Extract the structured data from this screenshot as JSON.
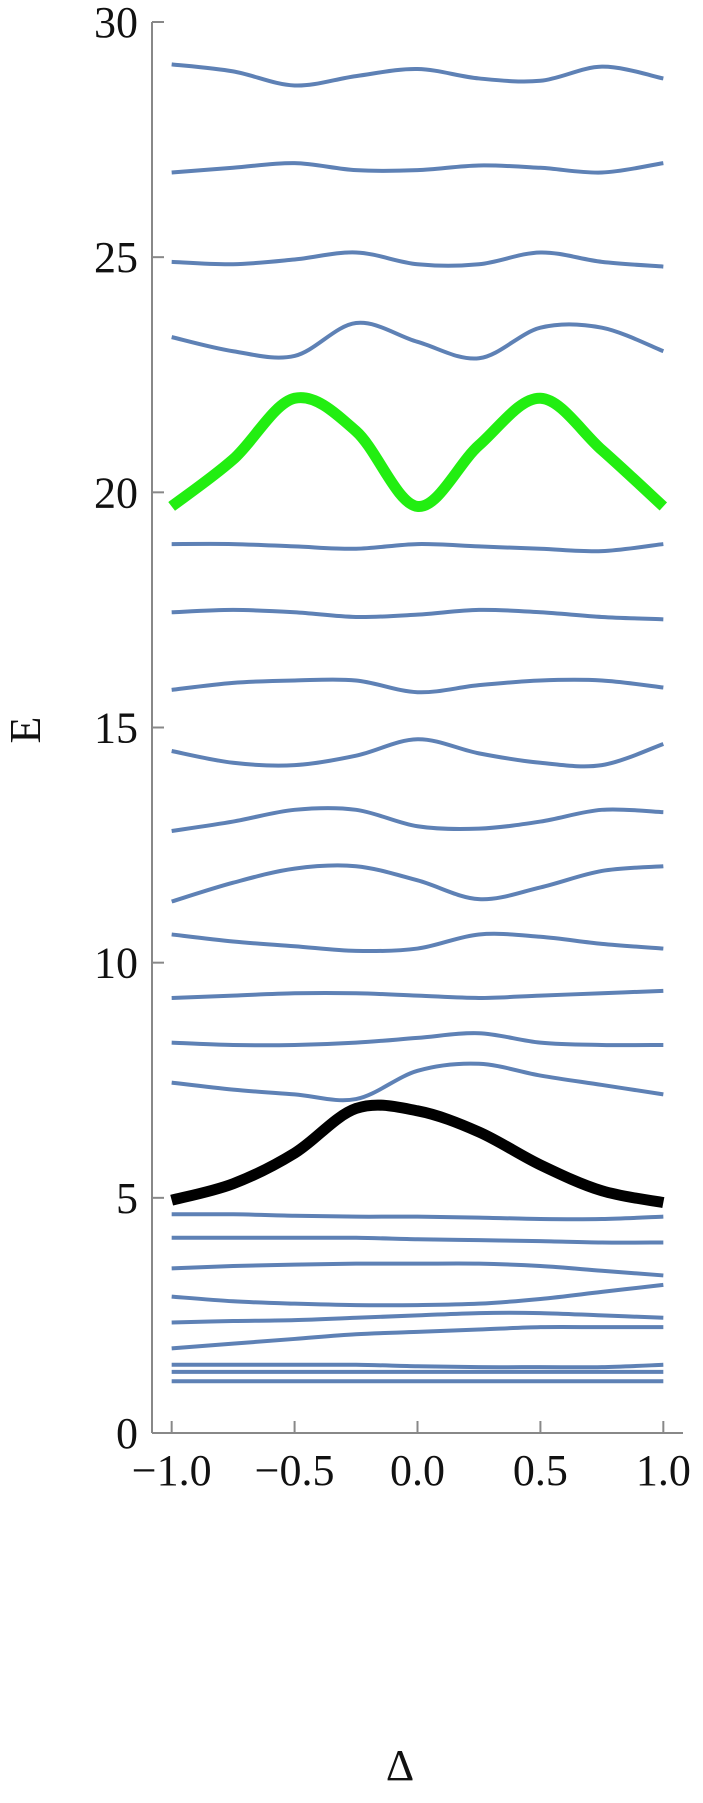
{
  "chart_data": {
    "type": "line",
    "x_label": "Δ",
    "y_label": "E",
    "x": [
      -1,
      -0.75,
      -0.5,
      -0.25,
      0,
      0.25,
      0.5,
      0.75,
      1
    ],
    "xlim": [
      -1.08,
      1.08
    ],
    "ylim": [
      0,
      30
    ],
    "xticks": [
      {
        "value": -1,
        "label": "−1.0"
      },
      {
        "value": -0.5,
        "label": "−0.5"
      },
      {
        "value": 0,
        "label": "0.0"
      },
      0.5,
      {
        "value": 1,
        "label": "1.0"
      }
    ],
    "yticks": [
      0,
      5,
      10,
      15,
      20,
      25,
      30
    ],
    "series": [
      {
        "color": "#5e81b5",
        "values": [
          29.1,
          28.95,
          28.65,
          28.85,
          29.0,
          28.8,
          28.75,
          29.05,
          28.8
        ]
      },
      {
        "color": "#5e81b5",
        "values": [
          26.8,
          26.9,
          27.0,
          26.85,
          26.85,
          26.95,
          26.9,
          26.8,
          27.0
        ]
      },
      {
        "color": "#5e81b5",
        "values": [
          24.9,
          24.85,
          24.95,
          25.1,
          24.85,
          24.85,
          25.1,
          24.9,
          24.8
        ]
      },
      {
        "color": "#5e81b5",
        "values": [
          23.3,
          23.0,
          22.9,
          23.6,
          23.2,
          22.85,
          23.5,
          23.5,
          23.0
        ]
      },
      {
        "color": "#22ee11",
        "values": [
          19.7,
          20.7,
          22.0,
          21.3,
          19.7,
          21.0,
          22.0,
          20.9,
          19.7
        ]
      },
      {
        "color": "#5e81b5",
        "values": [
          18.9,
          18.9,
          18.85,
          18.8,
          18.9,
          18.85,
          18.8,
          18.75,
          18.9
        ]
      },
      {
        "color": "#5e81b5",
        "values": [
          17.45,
          17.5,
          17.45,
          17.35,
          17.4,
          17.5,
          17.45,
          17.35,
          17.3
        ]
      },
      {
        "color": "#5e81b5",
        "values": [
          15.8,
          15.95,
          16.0,
          16.0,
          15.75,
          15.9,
          16.0,
          16.0,
          15.85
        ]
      },
      {
        "color": "#5e81b5",
        "values": [
          14.5,
          14.25,
          14.2,
          14.4,
          14.75,
          14.45,
          14.25,
          14.2,
          14.65
        ]
      },
      {
        "color": "#5e81b5",
        "values": [
          12.8,
          13.0,
          13.25,
          13.25,
          12.9,
          12.85,
          13.0,
          13.25,
          13.2
        ]
      },
      {
        "color": "#5e81b5",
        "values": [
          11.3,
          11.7,
          12.0,
          12.05,
          11.75,
          11.35,
          11.6,
          11.95,
          12.05
        ]
      },
      {
        "color": "#5e81b5",
        "values": [
          10.6,
          10.45,
          10.35,
          10.25,
          10.3,
          10.6,
          10.55,
          10.4,
          10.3
        ]
      },
      {
        "color": "#5e81b5",
        "values": [
          9.25,
          9.3,
          9.35,
          9.35,
          9.3,
          9.25,
          9.3,
          9.35,
          9.4
        ]
      },
      {
        "color": "#5e81b5",
        "values": [
          8.3,
          8.25,
          8.25,
          8.3,
          8.4,
          8.5,
          8.3,
          8.25,
          8.25
        ]
      },
      {
        "color": "#5e81b5",
        "values": [
          7.45,
          7.3,
          7.2,
          7.1,
          7.7,
          7.85,
          7.6,
          7.4,
          7.2
        ]
      },
      {
        "color": "#000000",
        "values": [
          4.95,
          5.3,
          5.95,
          6.9,
          6.85,
          6.4,
          5.7,
          5.15,
          4.9
        ]
      },
      {
        "color": "#5e81b5",
        "values": [
          4.65,
          4.65,
          4.62,
          4.6,
          4.6,
          4.58,
          4.55,
          4.55,
          4.6
        ]
      },
      {
        "color": "#5e81b5",
        "values": [
          4.15,
          4.15,
          4.15,
          4.15,
          4.12,
          4.1,
          4.08,
          4.05,
          4.05
        ]
      },
      {
        "color": "#5e81b5",
        "values": [
          3.5,
          3.55,
          3.58,
          3.6,
          3.6,
          3.6,
          3.55,
          3.45,
          3.35
        ]
      },
      {
        "color": "#5e81b5",
        "values": [
          2.9,
          2.8,
          2.75,
          2.72,
          2.72,
          2.75,
          2.85,
          3.0,
          3.15
        ]
      },
      {
        "color": "#5e81b5",
        "values": [
          2.35,
          2.38,
          2.4,
          2.45,
          2.5,
          2.55,
          2.55,
          2.5,
          2.45
        ]
      },
      {
        "color": "#5e81b5",
        "values": [
          1.8,
          1.9,
          2.0,
          2.1,
          2.15,
          2.2,
          2.25,
          2.25,
          2.25
        ]
      },
      {
        "color": "#5e81b5",
        "values": [
          1.45,
          1.45,
          1.45,
          1.45,
          1.42,
          1.4,
          1.4,
          1.4,
          1.45
        ]
      },
      {
        "color": "#5e81b5",
        "values": [
          1.3,
          1.3,
          1.3,
          1.3,
          1.3,
          1.3,
          1.3,
          1.3,
          1.3
        ]
      },
      {
        "color": "#5e81b5",
        "values": [
          1.1,
          1.1,
          1.1,
          1.1,
          1.1,
          1.1,
          1.1,
          1.1,
          1.1
        ]
      }
    ]
  }
}
